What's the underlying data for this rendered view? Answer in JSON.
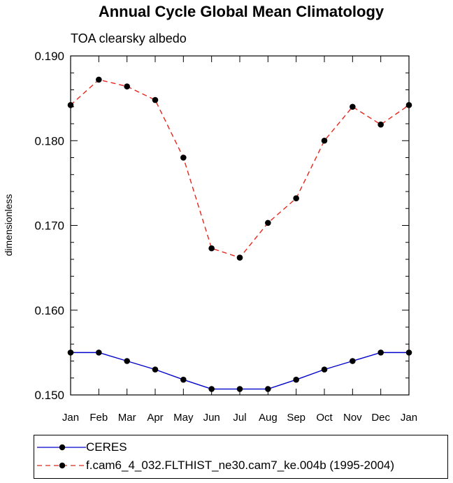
{
  "chart_data": {
    "type": "line",
    "title": "Annual Cycle Global Mean Climatology",
    "subtitle": "TOA clearsky albedo",
    "xlabel": "",
    "ylabel": "dimensionless",
    "categories": [
      "Jan",
      "Feb",
      "Mar",
      "Apr",
      "May",
      "Jun",
      "Jul",
      "Aug",
      "Sep",
      "Oct",
      "Nov",
      "Dec",
      "Jan"
    ],
    "ylim": [
      0.15,
      0.19
    ],
    "yticks": [
      "0.150",
      "0.160",
      "0.170",
      "0.180",
      "0.190"
    ],
    "series": [
      {
        "name": "CERES",
        "color": "#0000cc",
        "dash": "solid",
        "values": [
          0.155,
          0.155,
          0.154,
          0.153,
          0.1518,
          0.1507,
          0.1507,
          0.1507,
          0.1518,
          0.153,
          0.154,
          0.155,
          0.155
        ]
      },
      {
        "name": "f.cam6_4_032.FLTHIST_ne30.cam7_ke.004b (1995-2004)",
        "color": "#e8261c",
        "dash": "dashed",
        "values": [
          0.1842,
          0.1872,
          0.1864,
          0.1848,
          0.178,
          0.1673,
          0.1662,
          0.1703,
          0.1732,
          0.18,
          0.184,
          0.1819,
          0.1842
        ]
      }
    ],
    "legend_position": "bottom"
  }
}
